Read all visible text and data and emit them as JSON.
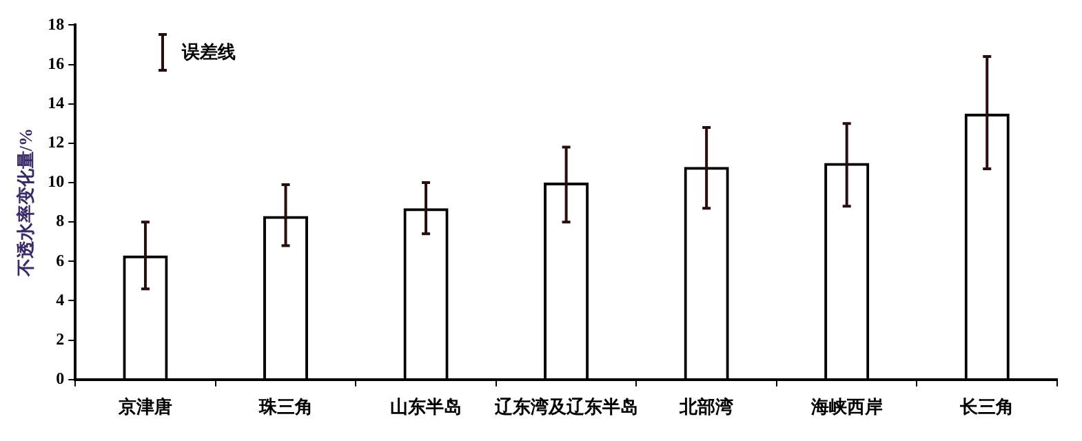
{
  "chart_data": {
    "type": "bar",
    "ylabel": "不透水率变化量/%",
    "categories": [
      "京津唐",
      "珠三角",
      "山东半岛",
      "辽东湾及辽东半岛",
      "北部湾",
      "海峡西岸",
      "长三角"
    ],
    "values": [
      6.3,
      8.3,
      8.7,
      10.0,
      10.8,
      11.0,
      13.5
    ],
    "errors": [
      [
        4.6,
        8.0
      ],
      [
        6.8,
        9.9
      ],
      [
        7.4,
        10.0
      ],
      [
        8.0,
        11.8
      ],
      [
        8.7,
        12.8
      ],
      [
        8.8,
        13.0
      ],
      [
        10.7,
        16.4
      ]
    ],
    "color": "#000000",
    "ylim": [
      0,
      18
    ],
    "yticks": [
      0,
      2,
      4,
      6,
      8,
      10,
      12,
      14,
      16,
      18
    ],
    "grid": false,
    "annotations": [
      "误差线"
    ]
  }
}
